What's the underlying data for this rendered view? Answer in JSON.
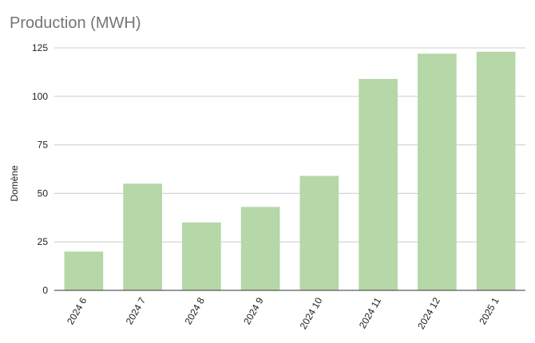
{
  "chart_data": {
    "type": "bar",
    "title": "Production (MWH)",
    "xlabel": "",
    "ylabel": "Domène",
    "categories": [
      "2024 6",
      "2024 7",
      "2024 8",
      "2024 9",
      "2024 10",
      "2024 11",
      "2024 12",
      "2025 1"
    ],
    "values": [
      20,
      55,
      35,
      43,
      59,
      109,
      122,
      123
    ],
    "ylim": [
      0,
      125
    ],
    "yticks": [
      0,
      25,
      50,
      75,
      100,
      125
    ],
    "grid": true,
    "legend": "none",
    "bar_color": "#b6d7a8",
    "grid_color": "#cccccc",
    "axis_color": "#333333"
  }
}
